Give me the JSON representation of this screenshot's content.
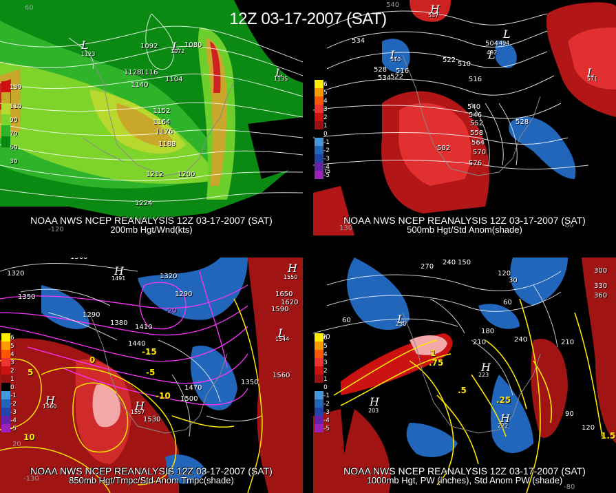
{
  "title": "12Z 03-17-2007 (SAT)",
  "colors": {
    "background": "#000000",
    "contour": "#ffffff",
    "temp_contour": "#ffe600",
    "anomaly_contour": "#ff33ff",
    "positive_anomaly": "#cc1111",
    "negative_anomaly": "#2266bb"
  },
  "panels": [
    {
      "id": "p200",
      "footer1": "NOAA NWS NCEP REANALYSIS 12Z 03-17-2007 (SAT)",
      "footer2": "200mb Hgt/Wnd(kts)",
      "legend": [
        "130",
        "110",
        "90",
        "70",
        "50",
        "30"
      ],
      "lon_labels": [
        "60",
        "-120"
      ],
      "pressure_systems": [
        {
          "type": "L",
          "value": "1123"
        },
        {
          "type": "L",
          "value": "1072"
        },
        {
          "type": "L",
          "value": "1135"
        }
      ],
      "contour_labels": [
        "1092",
        "1080",
        "1128",
        "1116",
        "1140",
        "1104",
        "1152",
        "1164",
        "1176",
        "1188",
        "1212",
        "1200",
        "1224"
      ]
    },
    {
      "id": "p500",
      "footer1": "NOAA NWS NCEP REANALYSIS 12Z 03-17-2007 (SAT)",
      "footer2": "500mb Hgt/Std Anom(shade)",
      "legend": [
        "6",
        "5",
        "4",
        "3",
        "2",
        "1",
        "0",
        "-1",
        "-2",
        "-3",
        "-4",
        "-5"
      ],
      "lon_labels": [
        "540",
        "130",
        "-80"
      ],
      "pressure_systems": [
        {
          "type": "H",
          "value": "537"
        },
        {
          "type": "L",
          "value": "510"
        },
        {
          "type": "L",
          "value": "494"
        },
        {
          "type": "L",
          "value": "492"
        },
        {
          "type": "L",
          "value": "571"
        },
        {
          "type": "L",
          "value": "575"
        }
      ],
      "contour_labels": [
        "534",
        "528",
        "522",
        "534",
        "516",
        "504",
        "510",
        "516",
        "540",
        "546",
        "552",
        "558",
        "564",
        "570",
        "576",
        "582",
        "528",
        "522"
      ]
    },
    {
      "id": "p850",
      "footer1": "NOAA NWS NCEP REANALYSIS 12Z 03-17-2007 (SAT)",
      "footer2": "850mb Hgt/Tmpc/Std Anom Tmpc(shade)",
      "legend": [
        "6",
        "5",
        "4",
        "3",
        "2",
        "1",
        "0",
        "-1",
        "-2",
        "-3",
        "-4",
        "-5"
      ],
      "lon_labels": [
        "-130",
        "20"
      ],
      "pressure_systems": [
        {
          "type": "H",
          "value": "1491"
        },
        {
          "type": "H",
          "value": "1550"
        },
        {
          "type": "H",
          "value": "1557"
        },
        {
          "type": "L",
          "value": "1544"
        },
        {
          "type": "H",
          "value": "1560"
        }
      ],
      "contour_labels": [
        "1500",
        "1320",
        "1350",
        "1380",
        "1290",
        "1410",
        "1440",
        "1470",
        "1500",
        "1530",
        "1560",
        "1590",
        "1620",
        "1650",
        "1350",
        "1320",
        "1290"
      ],
      "temp_labels": [
        "-20",
        "-15",
        "-10",
        "-5",
        "0",
        "5",
        "10"
      ]
    },
    {
      "id": "p1000",
      "footer1": "NOAA NWS NCEP REANALYSIS 12Z 03-17-2007 (SAT)",
      "footer2": "1000mb Hgt, PW (inches), Std Anom PW (shade)",
      "legend": [
        "6",
        "5",
        "4",
        "3",
        "2",
        "1",
        "0",
        "-1",
        "-2",
        "-3",
        "-4",
        "-5"
      ],
      "lon_labels": [
        "-80"
      ],
      "pressure_systems": [
        {
          "type": "H",
          "value": "203"
        },
        {
          "type": "H",
          "value": "223"
        },
        {
          "type": "H",
          "value": "222"
        },
        {
          "type": "L",
          "value": "230"
        }
      ],
      "contour_labels": [
        "270",
        "240",
        "150",
        "120",
        "60",
        "90",
        "180",
        "210",
        "240",
        "300",
        "330",
        "360",
        "210",
        "120",
        "90",
        "60",
        "30"
      ],
      "pw_labels": [
        "1",
        ".75",
        ".5",
        ".25",
        "1.5"
      ]
    }
  ]
}
